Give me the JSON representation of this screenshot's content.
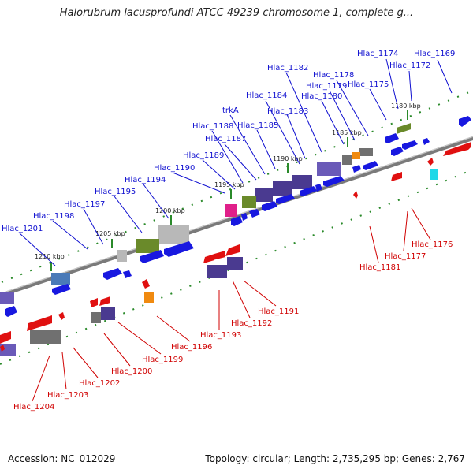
{
  "title": "Halorubrum lacusprofundi ATCC 49239 chromosome 1, complete g...",
  "footer": {
    "accession": "Accession: NC_012029",
    "topology": "Topology: circular; Length: 2,735,295 bp; Genes: 2,767"
  },
  "colors": {
    "forward_label": "#1010d0",
    "reverse_label": "#d00000",
    "backbone": "#7a7a7a",
    "tick": "#2a8a2a",
    "blue_gene": "#1818e0",
    "red_gene": "#e01010",
    "purple_gene": "#5a4aa8",
    "gray_gene": "#808080",
    "olive_gene": "#6a8a2a",
    "orange_gene": "#f08a10",
    "magenta_gene": "#e0208a",
    "cyan_gene": "#20d8e8"
  },
  "kbp_markers": [
    "1180 kbp",
    "1185 kbp",
    "1190 kbp",
    "1195 kbp",
    "1200 kbp",
    "1205 kbp",
    "1210 kbp"
  ],
  "forward_labels": [
    "Hlac_1169",
    "Hlac_1172",
    "Hlac_1174",
    "Hlac_1175",
    "Hlac_1178",
    "Hlac_1179",
    "Hlac_1180",
    "Hlac_1182",
    "Hlac_1184",
    "Hlac_1183",
    "trkA",
    "Hlac_1188",
    "Hlac_1185",
    "Hlac_1187",
    "Hlac_1189",
    "Hlac_1190",
    "Hlac_1194",
    "Hlac_1195",
    "Hlac_1197",
    "Hlac_1198",
    "Hlac_1201"
  ],
  "reverse_labels": [
    "Hlac_1176",
    "Hlac_1177",
    "Hlac_1181",
    "Hlac_1191",
    "Hlac_1192",
    "Hlac_1193",
    "Hlac_1196",
    "Hlac_1199",
    "Hlac_1200",
    "Hlac_1202",
    "Hlac_1203",
    "Hlac_1204"
  ]
}
